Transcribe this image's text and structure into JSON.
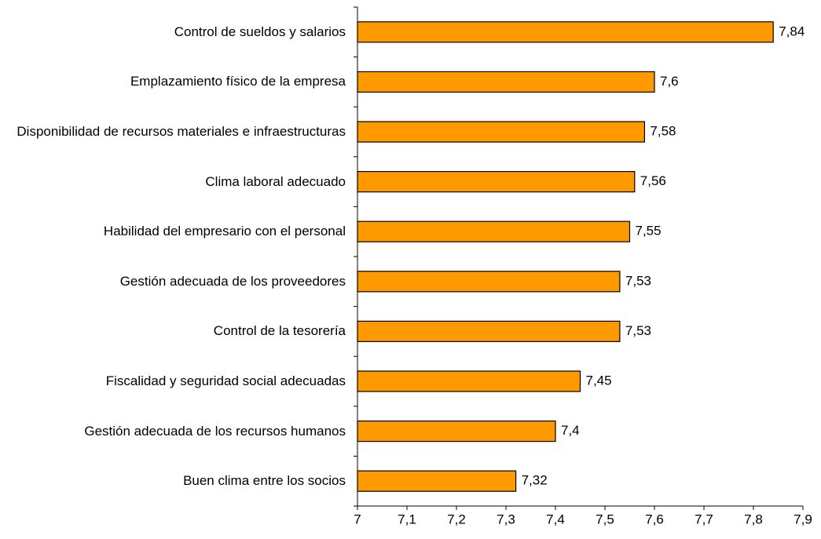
{
  "chart_data": {
    "type": "bar",
    "orientation": "horizontal",
    "categories": [
      "Control de sueldos y salarios",
      "Emplazamiento físico de la empresa",
      "Disponibilidad de recursos materiales e infraestructuras",
      "Clima laboral adecuado",
      "Habilidad del empresario con el personal",
      "Gestión adecuada de los proveedores",
      "Control de la tesorería",
      "Fiscalidad y seguridad social adecuadas",
      "Gestión adecuada de los recursos humanos",
      "Buen clima entre los socios"
    ],
    "values": [
      7.84,
      7.6,
      7.58,
      7.56,
      7.55,
      7.53,
      7.53,
      7.45,
      7.4,
      7.32
    ],
    "value_labels": [
      "7,84",
      "7,6",
      "7,58",
      "7,56",
      "7,55",
      "7,53",
      "7,53",
      "7,45",
      "7,4",
      "7,32"
    ],
    "color": "#ff9900",
    "xlim": [
      7,
      7.9
    ],
    "xticks": [
      7,
      {
        "value": 7.1,
        "label": "7,1"
      },
      {
        "value": 7.2,
        "label": "7,2"
      },
      {
        "value": 7.3,
        "label": "7,3"
      },
      {
        "value": 7.4,
        "label": "7,4"
      },
      {
        "value": 7.5,
        "label": "7,5"
      },
      {
        "value": 7.6,
        "label": "7,6"
      },
      {
        "value": 7.7,
        "label": "7,7"
      },
      {
        "value": 7.8,
        "label": "7,8"
      },
      {
        "value": 7.9,
        "label": "7,9"
      }
    ],
    "grid": false
  }
}
